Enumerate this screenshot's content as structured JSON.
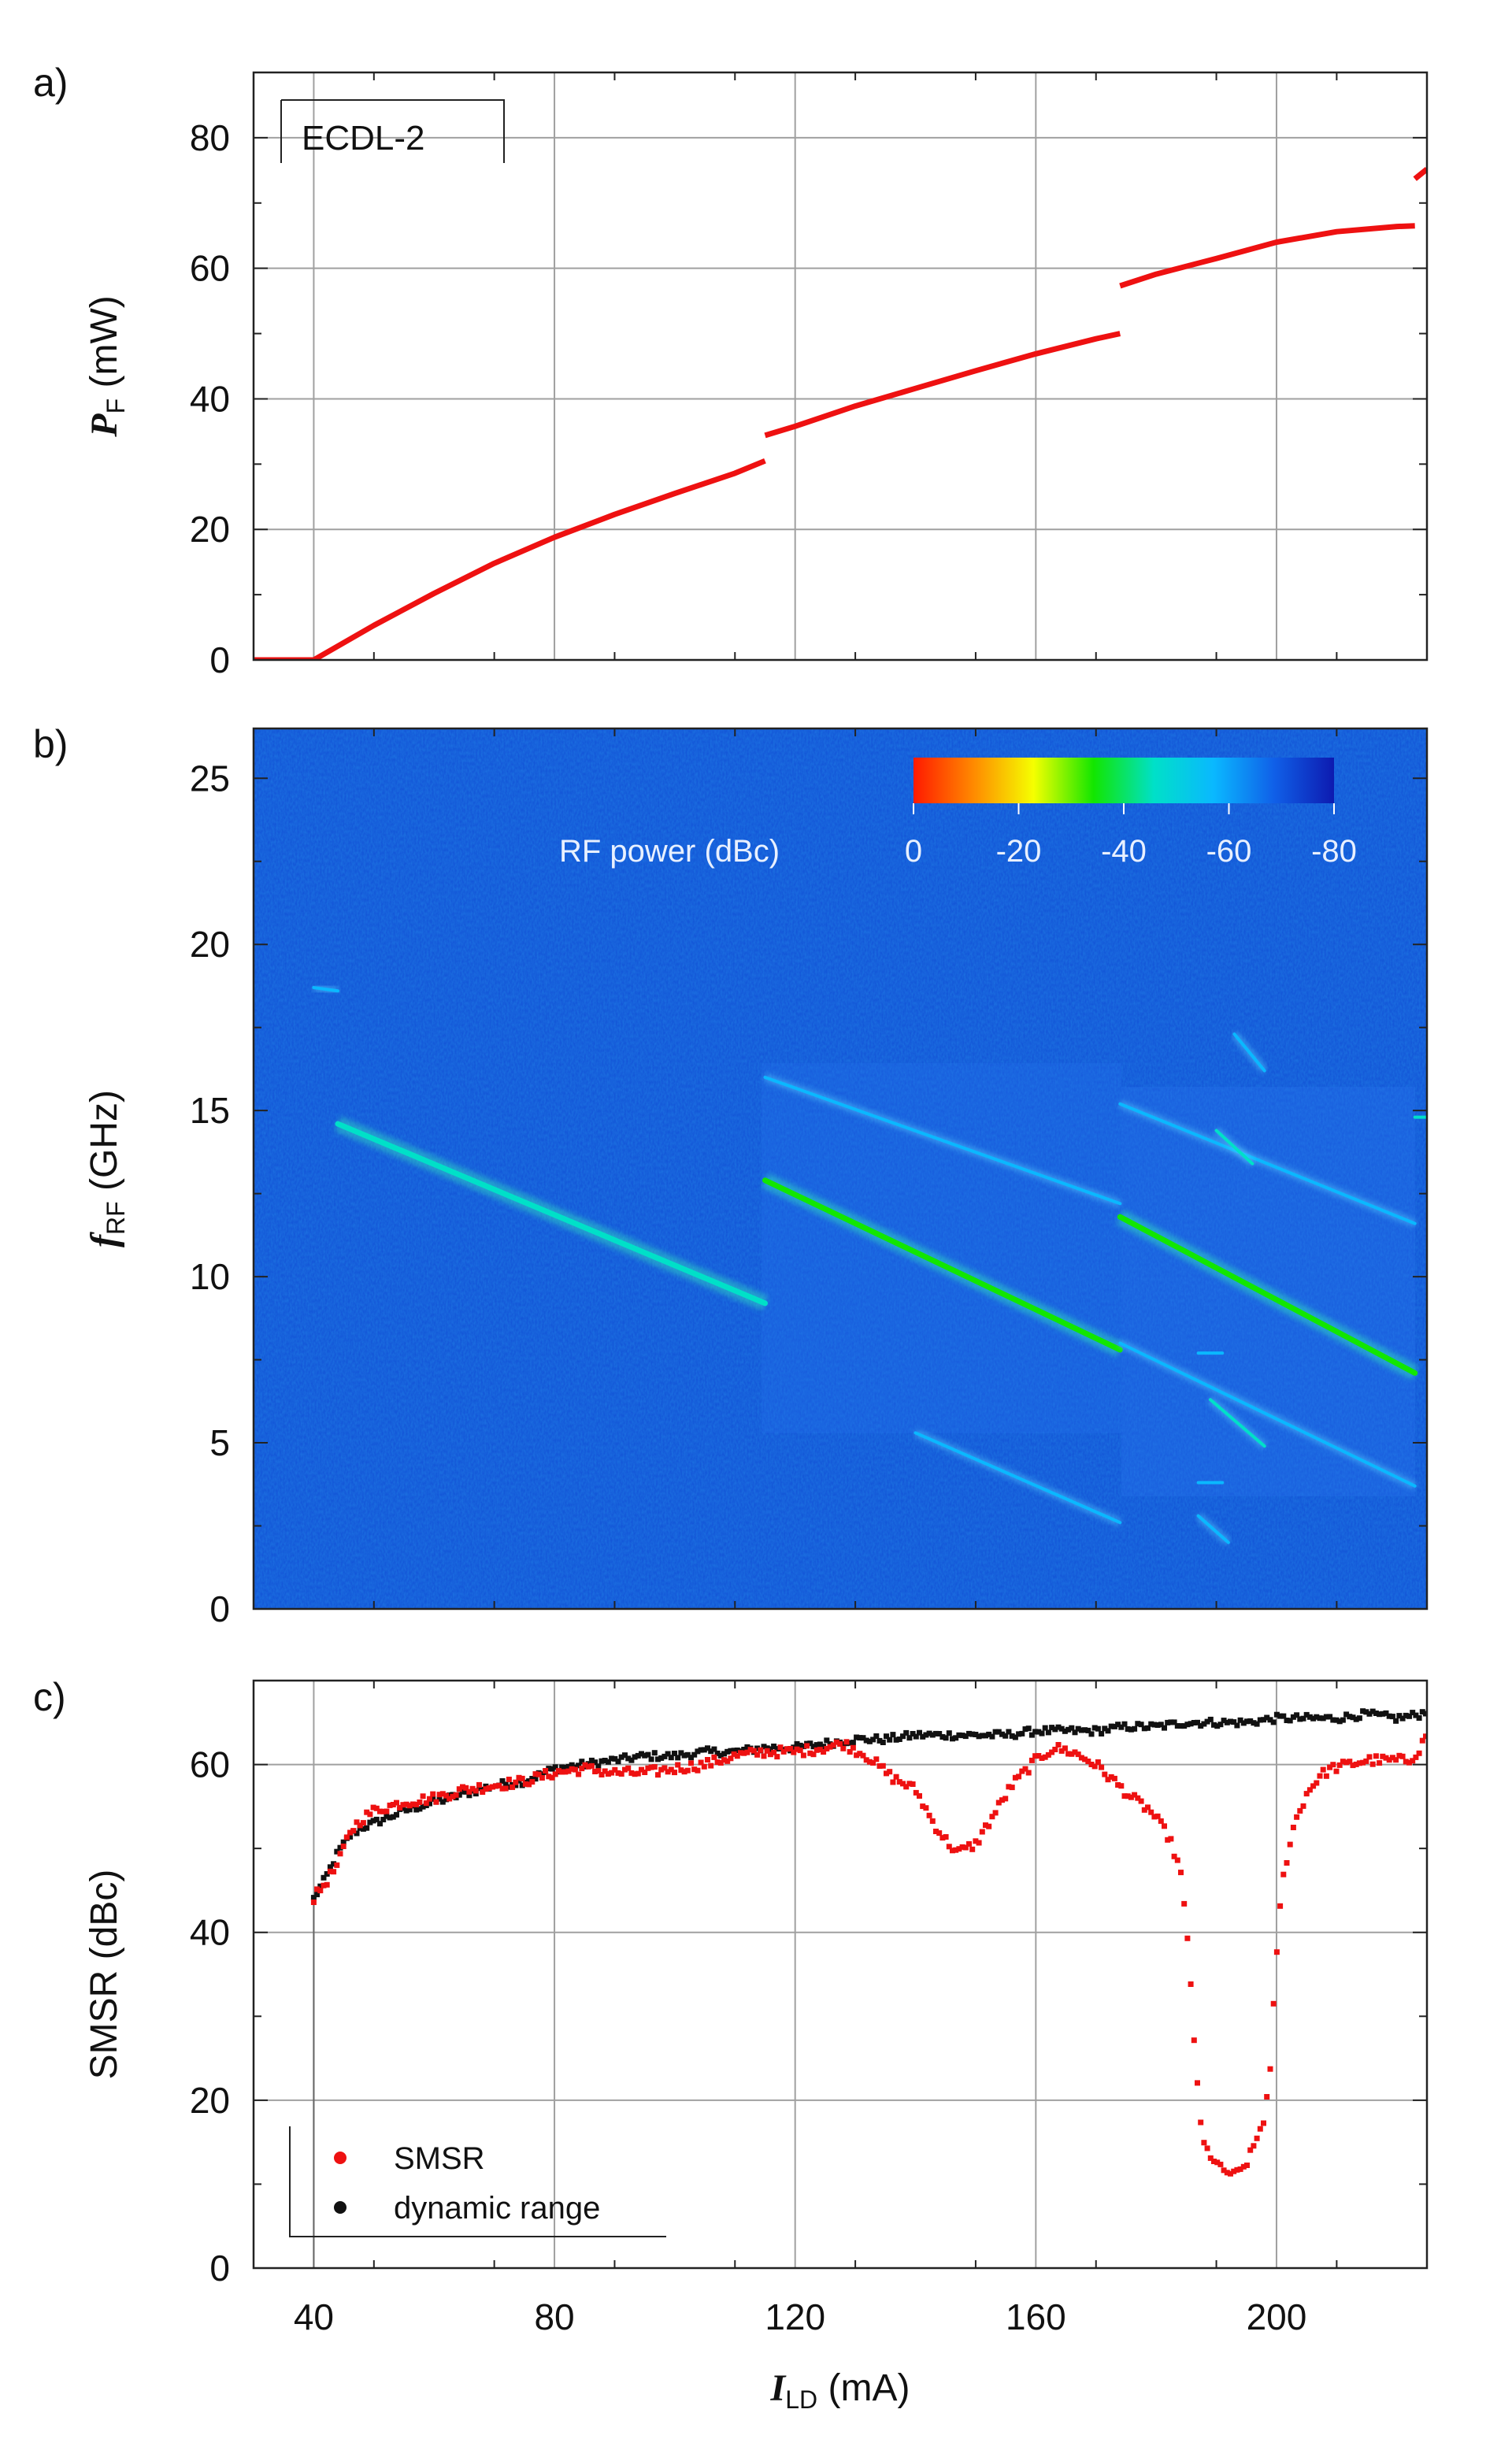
{
  "figure": {
    "panel_labels": [
      "a)",
      "b)",
      "c)"
    ],
    "x_axis": {
      "label_sym": "I",
      "label_sub": "LD",
      "label_unit": " (mA)"
    }
  },
  "chart_data": [
    {
      "type": "line",
      "panel": "a)",
      "legend_box": "ECDL-2",
      "ylabel_sym": "P",
      "ylabel_sub": "F",
      "ylabel_unit": " (mW)",
      "xlim": [
        30,
        225
      ],
      "ylim": [
        0,
        90
      ],
      "xticks": [
        40,
        80,
        120,
        160,
        200
      ],
      "yticks": [
        0,
        20,
        40,
        60,
        80
      ],
      "grid": true,
      "color": "#ee1111",
      "series": [
        {
          "x": [
            30,
            40
          ],
          "y": [
            0,
            0
          ]
        },
        {
          "x": [
            40,
            50,
            60,
            70,
            80,
            90,
            100,
            110,
            115
          ],
          "y": [
            0,
            5.3,
            10.2,
            14.8,
            18.8,
            22.3,
            25.5,
            28.6,
            30.5
          ]
        },
        {
          "x": [
            115,
            120,
            130,
            140,
            150,
            160,
            170,
            174
          ],
          "y": [
            34.4,
            35.8,
            38.9,
            41.6,
            44.3,
            46.9,
            49.2,
            50.0
          ]
        },
        {
          "x": [
            174,
            180,
            190,
            200,
            210,
            220,
            223
          ],
          "y": [
            57.3,
            59.1,
            61.5,
            64.0,
            65.6,
            66.4,
            66.5
          ]
        },
        {
          "x": [
            223,
            225
          ],
          "y": [
            73.7,
            75.2
          ]
        }
      ]
    },
    {
      "type": "heatmap",
      "panel": "b)",
      "ylabel_sym": "f",
      "ylabel_sub": "RF",
      "ylabel_unit": " (GHz)",
      "xlim": [
        30,
        225
      ],
      "ylim": [
        0,
        26.5
      ],
      "xticks": [
        40,
        80,
        120,
        160,
        200
      ],
      "yticks": [
        0,
        5,
        10,
        15,
        20,
        25
      ],
      "background_level_dBc": -65,
      "colorbar": {
        "label": "RF power (dBc)",
        "ticks": [
          "0",
          "-20",
          "-40",
          "-60",
          "-80"
        ],
        "range": [
          0,
          -80
        ],
        "colors": [
          "#ff1a00",
          "#ff8a00",
          "#f5ff00",
          "#12e600",
          "#00e0c8",
          "#0ab8ff",
          "#1060e8",
          "#0d1ab0"
        ]
      },
      "lines": [
        {
          "level": "-40",
          "x": [
            44,
            115
          ],
          "y": [
            14.6,
            9.2
          ]
        },
        {
          "level": "-38",
          "x": [
            115,
            174
          ],
          "y": [
            12.9,
            7.8
          ]
        },
        {
          "level": "-38",
          "x": [
            174,
            223
          ],
          "y": [
            11.8,
            7.1
          ]
        },
        {
          "level": "-58",
          "x": [
            115,
            174
          ],
          "y": [
            16.0,
            12.2
          ]
        },
        {
          "level": "-60",
          "x": [
            140,
            174
          ],
          "y": [
            5.3,
            2.6
          ]
        },
        {
          "level": "-58",
          "x": [
            174,
            223
          ],
          "y": [
            15.2,
            11.6
          ]
        },
        {
          "level": "-58",
          "x": [
            174,
            223
          ],
          "y": [
            8.0,
            3.7
          ]
        },
        {
          "level": "-50",
          "x": [
            190,
            196
          ],
          "y": [
            14.4,
            13.4
          ]
        },
        {
          "level": "-50",
          "x": [
            189,
            198
          ],
          "y": [
            6.3,
            4.9
          ]
        },
        {
          "level": "-58",
          "x": [
            187,
            192
          ],
          "y": [
            2.8,
            2.0
          ]
        },
        {
          "level": "-60",
          "x": [
            193,
            198
          ],
          "y": [
            17.3,
            16.2
          ]
        },
        {
          "level": "-52",
          "x": [
            40,
            44
          ],
          "y": [
            18.7,
            18.6
          ]
        },
        {
          "level": "-50",
          "x": [
            223,
            225
          ],
          "y": [
            14.8,
            14.8
          ]
        },
        {
          "level": "-55",
          "x": [
            187,
            191
          ],
          "y": [
            3.8,
            3.8
          ]
        },
        {
          "level": "-55",
          "x": [
            187,
            191
          ],
          "y": [
            7.7,
            7.7
          ]
        }
      ]
    },
    {
      "type": "scatter",
      "panel": "c)",
      "ylabel": "SMSR (dBc)",
      "xlim": [
        30,
        225
      ],
      "ylim": [
        0,
        70
      ],
      "xticks": [
        40,
        80,
        120,
        160,
        200
      ],
      "yticks": [
        0,
        20,
        40,
        60
      ],
      "grid": true,
      "legend_position": "bottom-left",
      "series": [
        {
          "name": "SMSR",
          "color": "#ee1111",
          "x": [
            40,
            42,
            44,
            46,
            48,
            50,
            55,
            60,
            65,
            70,
            75,
            80,
            85,
            90,
            95,
            100,
            105,
            110,
            115,
            120,
            125,
            128,
            132,
            136,
            140,
            143,
            145,
            147,
            150,
            153,
            156,
            160,
            163,
            166,
            170,
            173,
            176,
            179,
            182,
            184,
            185.5,
            186.5,
            187,
            187.5,
            188,
            189,
            190,
            191,
            192,
            193,
            194,
            195,
            196,
            197,
            198,
            199,
            199.5,
            200,
            200.5,
            201,
            202,
            203,
            205,
            207,
            209,
            212,
            215,
            218,
            222,
            224,
            225
          ],
          "y": [
            44,
            46,
            48,
            52,
            53.5,
            54.5,
            55.5,
            56,
            57,
            57.5,
            58,
            59,
            59.5,
            59,
            59,
            59.5,
            60,
            61,
            61.5,
            61.5,
            62,
            62.5,
            61,
            58.5,
            57,
            53,
            51,
            49.5,
            50.5,
            54,
            57.5,
            60.5,
            62,
            61.5,
            60,
            58,
            56,
            54.5,
            51.5,
            47.5,
            37,
            25,
            20,
            16.5,
            14.5,
            13.5,
            12.5,
            11.5,
            11.5,
            11,
            11.5,
            12.5,
            14,
            16,
            18,
            23.5,
            31,
            37.5,
            42,
            46,
            50,
            53,
            56.5,
            58.5,
            59.5,
            60,
            60.5,
            60.5,
            60.5,
            62,
            64
          ]
        },
        {
          "name": "dynamic range",
          "color": "#111111",
          "x": [
            40,
            42,
            44,
            46,
            48,
            50,
            55,
            60,
            65,
            70,
            75,
            80,
            85,
            90,
            95,
            100,
            105,
            110,
            115,
            120,
            125,
            130,
            135,
            140,
            145,
            150,
            155,
            160,
            165,
            170,
            175,
            180,
            185,
            190,
            195,
            200,
            205,
            210,
            215,
            220,
            224,
            225
          ],
          "y": [
            44,
            46.5,
            49.5,
            51.5,
            52.5,
            53,
            54.5,
            55.5,
            56.5,
            57.5,
            58,
            59.5,
            60,
            60.5,
            61,
            61,
            61.5,
            61.5,
            62,
            62,
            62.5,
            63,
            63,
            63.5,
            63.5,
            63.5,
            63.5,
            64,
            64,
            64,
            64.5,
            64.5,
            65,
            65,
            65,
            65.5,
            65.5,
            65.5,
            66,
            65.5,
            66,
            66.5
          ]
        }
      ]
    }
  ]
}
